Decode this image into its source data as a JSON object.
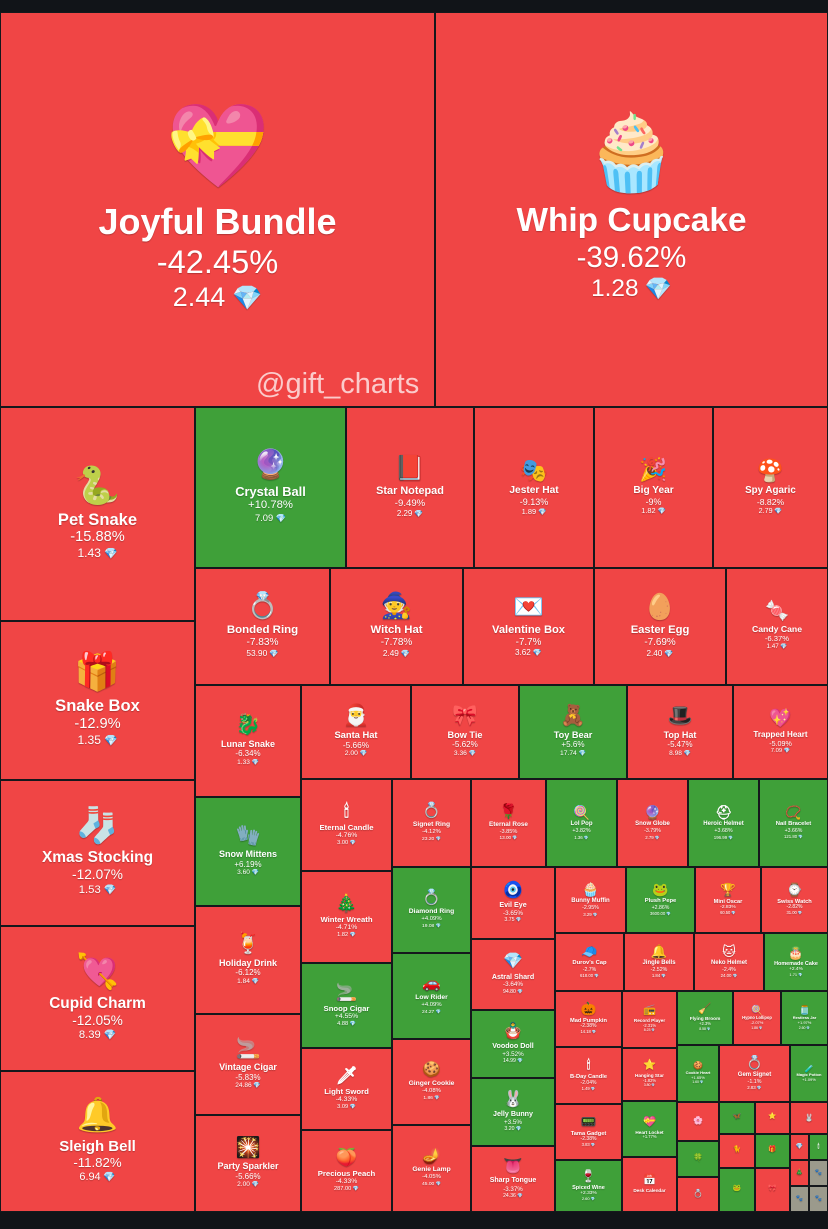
{
  "watermark": "@gift_charts",
  "colors": {
    "down": "#f04545",
    "up": "#3fa039",
    "border": "#15181c",
    "background": "#111418"
  },
  "chart_data": {
    "type": "treemap",
    "value_field": "price_ton",
    "items": [
      {
        "name": "Joyful Bundle",
        "change": "-42.45%",
        "price": "2.44",
        "direction": "down",
        "icon": "💝"
      },
      {
        "name": "Whip Cupcake",
        "change": "-39.62%",
        "price": "1.28",
        "direction": "down",
        "icon": "🧁"
      },
      {
        "name": "Pet Snake",
        "change": "-15.88%",
        "price": "1.43",
        "direction": "down",
        "icon": "🐍"
      },
      {
        "name": "Crystal Ball",
        "change": "+10.78%",
        "price": "7.09",
        "direction": "up",
        "icon": "🔮"
      },
      {
        "name": "Star Notepad",
        "change": "-9.49%",
        "price": "2.29",
        "direction": "down",
        "icon": "📕"
      },
      {
        "name": "Jester Hat",
        "change": "-9.13%",
        "price": "1.89",
        "direction": "down",
        "icon": "🎭"
      },
      {
        "name": "Big Year",
        "change": "-9%",
        "price": "1.82",
        "direction": "down",
        "icon": "🎉"
      },
      {
        "name": "Spy Agaric",
        "change": "-8.82%",
        "price": "2.79",
        "direction": "down",
        "icon": "🍄"
      },
      {
        "name": "Snake Box",
        "change": "-12.9%",
        "price": "1.35",
        "direction": "down",
        "icon": "🎁"
      },
      {
        "name": "Bonded Ring",
        "change": "-7.83%",
        "price": "53.90",
        "direction": "down",
        "icon": "💍"
      },
      {
        "name": "Witch Hat",
        "change": "-7.78%",
        "price": "2.49",
        "direction": "down",
        "icon": "🧙"
      },
      {
        "name": "Valentine Box",
        "change": "-7.7%",
        "price": "3.62",
        "direction": "down",
        "icon": "💌"
      },
      {
        "name": "Easter Egg",
        "change": "-7.69%",
        "price": "2.40",
        "direction": "down",
        "icon": "🥚"
      },
      {
        "name": "Candy Cane",
        "change": "-6.37%",
        "price": "1.47",
        "direction": "down",
        "icon": "🍬"
      },
      {
        "name": "Lunar Snake",
        "change": "-6.34%",
        "price": "1.33",
        "direction": "down",
        "icon": "🐉"
      },
      {
        "name": "Santa Hat",
        "change": "-5.66%",
        "price": "2.00",
        "direction": "down",
        "icon": "🎅"
      },
      {
        "name": "Bow Tie",
        "change": "-5.62%",
        "price": "3.36",
        "direction": "down",
        "icon": "🎀"
      },
      {
        "name": "Toy Bear",
        "change": "+5.6%",
        "price": "17.74",
        "direction": "up",
        "icon": "🧸"
      },
      {
        "name": "Top Hat",
        "change": "-5.47%",
        "price": "8.98",
        "direction": "down",
        "icon": "🎩"
      },
      {
        "name": "Trapped Heart",
        "change": "-5.09%",
        "price": "7.09",
        "direction": "down",
        "icon": "💖"
      },
      {
        "name": "Xmas Stocking",
        "change": "-12.07%",
        "price": "1.53",
        "direction": "down",
        "icon": "🧦"
      },
      {
        "name": "Snow Mittens",
        "change": "+6.19%",
        "price": "3.60",
        "direction": "up",
        "icon": "🧤"
      },
      {
        "name": "Eternal Candle",
        "change": "-4.76%",
        "price": "3.00",
        "direction": "down",
        "icon": "🕯"
      },
      {
        "name": "Signet Ring",
        "change": "-4.12%",
        "price": "23.20",
        "direction": "down",
        "icon": "💍"
      },
      {
        "name": "Eternal Rose",
        "change": "-3.85%",
        "price": "13.00",
        "direction": "down",
        "icon": "🌹"
      },
      {
        "name": "Lol Pop",
        "change": "+3.82%",
        "price": "1.36",
        "direction": "up",
        "icon": "🍭"
      },
      {
        "name": "Snow Globe",
        "change": "-3.79%",
        "price": "2.79",
        "direction": "down",
        "icon": "🔮"
      },
      {
        "name": "Heroic Helmet",
        "change": "+3.68%",
        "price": "196.99",
        "direction": "up",
        "icon": "⛑"
      },
      {
        "name": "Nail Bracelet",
        "change": "+3.66%",
        "price": "121.80",
        "direction": "up",
        "icon": "📿"
      },
      {
        "name": "Holiday Drink",
        "change": "-6.12%",
        "price": "1.84",
        "direction": "down",
        "icon": "🍹"
      },
      {
        "name": "Winter Wreath",
        "change": "-4.71%",
        "price": "1.82",
        "direction": "down",
        "icon": "🎄"
      },
      {
        "name": "Diamond Ring",
        "change": "+4.09%",
        "price": "19.08",
        "direction": "up",
        "icon": "💍"
      },
      {
        "name": "Evil Eye",
        "change": "-3.65%",
        "price": "3.75",
        "direction": "down",
        "icon": "🧿"
      },
      {
        "name": "Bunny Muffin",
        "change": "-2.95%",
        "price": "3.29",
        "direction": "down",
        "icon": "🧁"
      },
      {
        "name": "Plush Pepe",
        "change": "+2.86%",
        "price": "3600.00",
        "direction": "up",
        "icon": "🐸"
      },
      {
        "name": "Mini Oscar",
        "change": "-2.83%",
        "price": "60.50",
        "direction": "down",
        "icon": "🏆"
      },
      {
        "name": "Swiss Watch",
        "change": "-2.82%",
        "price": "31.00",
        "direction": "down",
        "icon": "⌚"
      },
      {
        "name": "Cupid Charm",
        "change": "-12.05%",
        "price": "8.39",
        "direction": "down",
        "icon": "💘"
      },
      {
        "name": "Astral Shard",
        "change": "-3.64%",
        "price": "94.80",
        "direction": "down",
        "icon": "💎"
      },
      {
        "name": "Durov's Cap",
        "change": "-2.7%",
        "price": "618.00",
        "direction": "down",
        "icon": "🧢"
      },
      {
        "name": "Jingle Bells",
        "change": "-2.52%",
        "price": "1.84",
        "direction": "down",
        "icon": "🔔"
      },
      {
        "name": "Neko Helmet",
        "change": "-2.4%",
        "price": "24.00",
        "direction": "down",
        "icon": "🐱"
      },
      {
        "name": "Homemade Cake",
        "change": "+2.4%",
        "price": "1.71",
        "direction": "up",
        "icon": "🎂"
      },
      {
        "name": "Snoop Cigar",
        "change": "+4.55%",
        "price": "4.88",
        "direction": "up",
        "icon": "🚬"
      },
      {
        "name": "Low Rider",
        "change": "+4.09%",
        "price": "24.27",
        "direction": "up",
        "icon": "🚗"
      },
      {
        "name": "Voodoo Doll",
        "change": "+3.52%",
        "price": "14.99",
        "direction": "up",
        "icon": "🪆"
      },
      {
        "name": "Mad Pumpkin",
        "change": "-2.38%",
        "price": "14.18",
        "direction": "down",
        "icon": "🎃"
      },
      {
        "name": "Record Player",
        "change": "-2.31%",
        "price": "8.23",
        "direction": "down",
        "icon": "📻"
      },
      {
        "name": "Flying Broom",
        "change": "+2.3%",
        "price": "8.58",
        "direction": "up",
        "icon": "🧹"
      },
      {
        "name": "Hypno Lollipop",
        "change": "-2.07%",
        "price": "1.86",
        "direction": "down",
        "icon": "🍭"
      },
      {
        "name": "Restless Jar",
        "change": "+1.97%",
        "price": "2.60",
        "direction": "up",
        "icon": "🫙"
      },
      {
        "name": "Sleigh Bell",
        "change": "-11.82%",
        "price": "6.94",
        "direction": "down",
        "icon": "🔔"
      },
      {
        "name": "Vintage Cigar",
        "change": "-5.83%",
        "price": "24.86",
        "direction": "down",
        "icon": "🚬"
      },
      {
        "name": "Light Sword",
        "change": "-4.33%",
        "price": "3.09",
        "direction": "down",
        "icon": "🗡"
      },
      {
        "name": "Ginger Cookie",
        "change": "-4.08%",
        "price": "1.86",
        "direction": "down",
        "icon": "🍪"
      },
      {
        "name": "Jelly Bunny",
        "change": "+3.5%",
        "price": "3.20",
        "direction": "up",
        "icon": "🐰"
      },
      {
        "name": "B-Day Candle",
        "change": "-2.04%",
        "price": "1.49",
        "direction": "down",
        "icon": "🕯"
      },
      {
        "name": "Hanging Star",
        "change": "-1.82%",
        "price": "3.80",
        "direction": "down",
        "icon": "⭐"
      },
      {
        "name": "Cookie Heart",
        "change": "+1.65%",
        "price": "1.60",
        "direction": "up",
        "icon": "🍪"
      },
      {
        "name": "Gem Signet",
        "change": "-1.1%",
        "price": "2.83",
        "direction": "down",
        "icon": "💍"
      },
      {
        "name": "Magic Potion",
        "change": "+1.09%",
        "price": "",
        "direction": "up",
        "icon": "🧪"
      },
      {
        "name": "Party Sparkler",
        "change": "-5.66%",
        "price": "2.00",
        "direction": "down",
        "icon": "🎇"
      },
      {
        "name": "Precious Peach",
        "change": "-4.33%",
        "price": "287.00",
        "direction": "down",
        "icon": "🍑"
      },
      {
        "name": "Genie Lamp",
        "change": "-4.05%",
        "price": "45.00",
        "direction": "down",
        "icon": "🪔"
      },
      {
        "name": "Sharp Tongue",
        "change": "-3.37%",
        "price": "24.36",
        "direction": "down",
        "icon": "👅"
      },
      {
        "name": "Tama Gadget",
        "change": "-2.38%",
        "price": "3.83",
        "direction": "down",
        "icon": "📟"
      },
      {
        "name": "Spiced Wine",
        "change": "+2.33%",
        "price": "2.60",
        "direction": "up",
        "icon": "🍷"
      },
      {
        "name": "Heart Locket",
        "change": "+1.77%",
        "price": "",
        "direction": "up",
        "icon": "💝"
      },
      {
        "name": "Desk Calendar",
        "change": "",
        "price": "",
        "direction": "down",
        "icon": "📅"
      },
      {
        "name": "",
        "change": "",
        "price": "",
        "direction": "down",
        "icon": "🌸"
      },
      {
        "name": "",
        "change": "",
        "price": "",
        "direction": "up",
        "icon": "🦋"
      },
      {
        "name": "",
        "change": "",
        "price": "",
        "direction": "down",
        "icon": "⭐"
      },
      {
        "name": "",
        "change": "",
        "price": "",
        "direction": "down",
        "icon": "🐰"
      },
      {
        "name": "",
        "change": "",
        "price": "",
        "direction": "up",
        "icon": "🍀"
      },
      {
        "name": "",
        "change": "",
        "price": "",
        "direction": "down",
        "icon": "🐈"
      },
      {
        "name": "",
        "change": "",
        "price": "",
        "direction": "up",
        "icon": "🎁"
      },
      {
        "name": "",
        "change": "",
        "price": "",
        "direction": "down",
        "icon": "💍"
      },
      {
        "name": "",
        "change": "",
        "price": "",
        "direction": "up",
        "icon": "🐸"
      },
      {
        "name": "",
        "change": "",
        "price": "",
        "direction": "down",
        "icon": "🎀"
      },
      {
        "name": "",
        "change": "",
        "price": "",
        "direction": "down",
        "icon": "💎"
      },
      {
        "name": "",
        "change": "",
        "price": "",
        "direction": "up",
        "icon": "🕯"
      },
      {
        "name": "",
        "change": "",
        "price": "",
        "direction": "down",
        "icon": "🎄"
      },
      {
        "name": "",
        "change": "",
        "price": "",
        "direction": "neutral",
        "icon": "🐾"
      },
      {
        "name": "",
        "change": "",
        "price": "",
        "direction": "neutral",
        "icon": "🐾"
      },
      {
        "name": "",
        "change": "",
        "price": "",
        "direction": "neutral",
        "icon": "🐾"
      },
      {
        "name": "",
        "change": "",
        "price": "",
        "direction": "neutral",
        "icon": "🐾"
      },
      {
        "name": "",
        "change": "",
        "price": "",
        "direction": "neutral",
        "icon": "🐾"
      },
      {
        "name": "",
        "change": "",
        "price": "",
        "direction": "neutral",
        "icon": "🐾"
      }
    ]
  }
}
